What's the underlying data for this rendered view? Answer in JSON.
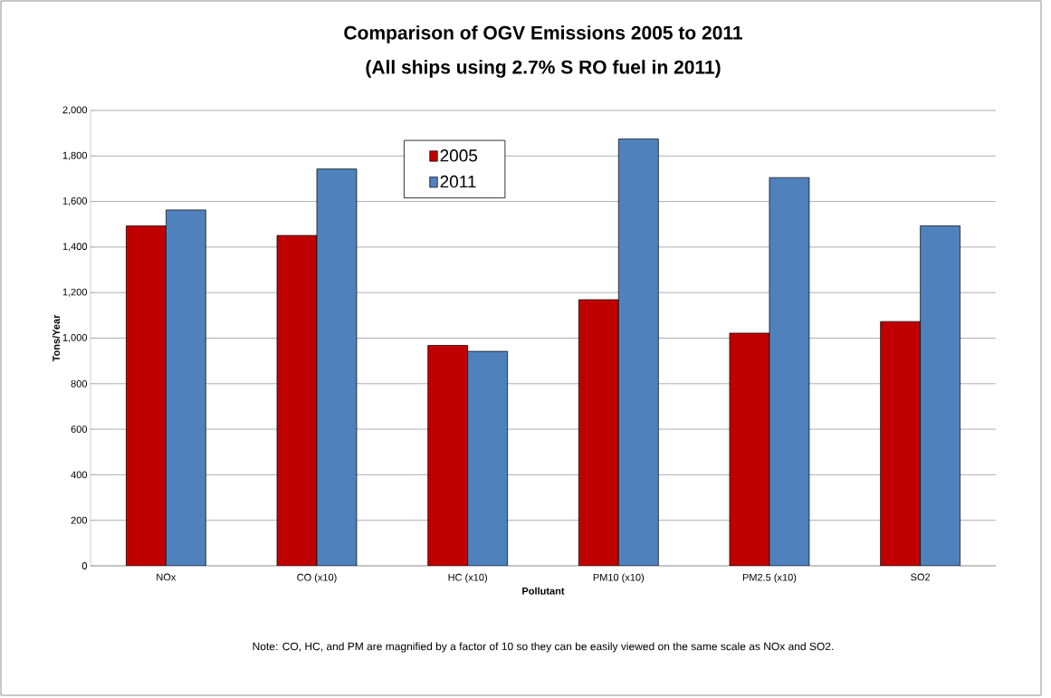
{
  "chart_data": {
    "type": "bar",
    "title": "Comparison of OGV Emissions 2005 to 2011",
    "subtitle": "(All ships using 2.7% S RO fuel in 2011)",
    "xlabel": "Pollutant",
    "ylabel": "Tons/Year",
    "annotations": [
      "Note: CO, HC, and PM are magnified by a factor of 10 so they can be easily viewed on the same scale as NOx and SO2."
    ],
    "categories": [
      "NOx",
      "CO (x10)",
      "HC (x10)",
      "PM10 (x10)",
      "PM2.5 (x10)",
      "SO2"
    ],
    "series": [
      {
        "name": "2005",
        "color": "#c00000",
        "values": [
          1493,
          1451,
          968,
          1169,
          1022,
          1073
        ]
      },
      {
        "name": "2011",
        "color": "#4f81bd",
        "values": [
          1563,
          1743,
          942,
          1875,
          1705,
          1493
        ]
      }
    ],
    "ylim": [
      0,
      2000
    ],
    "yticks": [
      0,
      200,
      400,
      600,
      800,
      {
        "value": 1000,
        "label": "1,000"
      },
      {
        "value": 1200,
        "label": "1,200"
      },
      {
        "value": 1400,
        "label": "1,400"
      },
      {
        "value": 1600,
        "label": "1,600"
      },
      {
        "value": 1800,
        "label": "1,800"
      },
      {
        "value": 2000,
        "label": "2,000"
      }
    ],
    "grid": "y",
    "legend": "top"
  }
}
